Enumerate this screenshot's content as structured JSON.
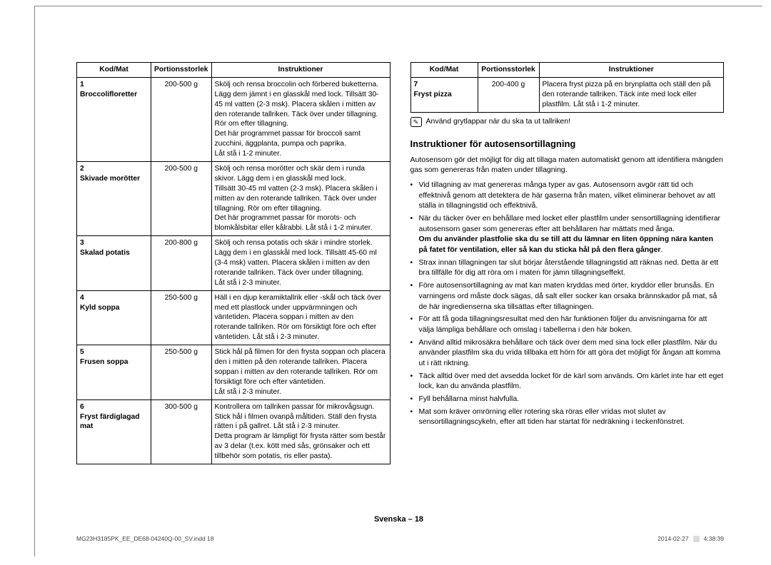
{
  "table_left": {
    "headers": [
      "Kod/Mat",
      "Portionsstorlek",
      "Instruktioner"
    ],
    "col_widths": [
      "104px",
      "78px",
      "auto"
    ],
    "rows": [
      {
        "code": "1",
        "name": "Broccolifloretter",
        "portion": "200-500 g",
        "instr": "Skölj och rensa broccolin och förbered buketterna. Lägg dem jämnt i en glasskål med lock. Tillsätt 30-45 ml vatten (2-3 msk). Placera skålen i mitten av den roterande tallriken. Täck över under tillagning. Rör om efter tillagning.\nDet här programmet passar för broccoli samt zucchini, äggplanta, pumpa och paprika.\nLåt stå i 1-2 minuter."
      },
      {
        "code": "2",
        "name": "Skivade morötter",
        "portion": "200-500 g",
        "instr": "Skölj och rensa morötter och skär dem i runda skivor. Lägg dem i en glasskål med lock.\nTillsätt 30-45 ml vatten (2-3 msk). Placera skålen i mitten av den roterande tallriken. Täck över under tillagning. Rör om efter tillagning.\nDet här programmet passar för morots- och blomkålsbitar eller kålrabbi. Låt stå i 1-2 minuter."
      },
      {
        "code": "3",
        "name": "Skalad potatis",
        "portion": "200-800 g",
        "instr": "Skölj och rensa potatis och skär i mindre storlek. Lägg dem i en glasskål med lock. Tillsätt 45-60 ml (3-4 msk) vatten. Placera skålen i mitten av den roterande tallriken. Täck över under tillagning.\nLåt stå i 2-3 minuter."
      },
      {
        "code": "4",
        "name": "Kyld soppa",
        "portion": "250-500 g",
        "instr": "Häll i en djup keramiktallrik eller -skål och täck över med ett plastlock under uppvärmningen och väntetiden. Placera soppan i mitten av den roterande tallriken. Rör om försiktigt före och efter väntetiden. Låt stå i 2-3 minuter."
      },
      {
        "code": "5",
        "name": "Frusen soppa",
        "portion": "250-500 g",
        "instr": "Stick hål på filmen för den frysta soppan och placera den i mitten på den roterande tallriken. Placera soppan i mitten av den roterande tallriken. Rör om försiktigt före och efter väntetiden.\nLåt stå i 2-3 minuter."
      },
      {
        "code": "6",
        "name": "Fryst färdiglagad mat",
        "portion": "300-500 g",
        "instr": "Kontrollera om tallriken passar för mikrovågsugn. Stick hål i filmen ovanpå måltiden. Ställ den frysta rätten i på gallret. Låt stå i 2-3 minuter.\nDetta program är lämpligt för frysta rätter som består av 3 delar (t.ex. kött med sås, grönsaker och ett tillbehör som potatis, ris eller pasta)."
      }
    ]
  },
  "table_right": {
    "headers": [
      "Kod/Mat",
      "Portionsstorlek",
      "Instruktioner"
    ],
    "rows": [
      {
        "code": "7",
        "name": "Fryst pizza",
        "portion": "200-400 g",
        "instr": "Placera fryst pizza på en brynplatta och ställ den på den roterande tallriken. Täck inte med lock eller plastfilm. Låt stå i 1-2 minuter."
      }
    ]
  },
  "note_text": "Använd grytlappar när du ska ta ut tallriken!",
  "section_heading": "Instruktioner för autosensortillagning",
  "intro_para": "Autosensorn gör det möjligt för dig att tillaga maten automatiskt genom att identifiera mängden gas som genereras från maten under tillagning.",
  "bullets": [
    "Vid tillagning av mat genereras många typer av gas. Autosensorn avgör rätt tid och effektnivå genom att detektera de här gaserna från maten, vilket eliminerar behovet av att ställa in tillagningstid och effektnivå.",
    "När du täcker över en behållare med locket eller plastfilm under sensortillagning identifierar autosensorn gaser som genereras efter att behållaren har mättats med ånga.\n<b>Om du använder plastfolie ska du se till att du lämnar en liten öppning nära kanten på fatet för ventilation, eller så kan du sticka hål på den flera gånger</b>.",
    "Strax innan tillagningen tar slut börjar återstående tillagningstid att räknas ned. Detta är ett bra tillfälle för dig att röra om i maten för jämn tillagningseffekt.",
    "Före autosensortillagning av mat kan maten kryddas med örter, kryddor eller brunsås. En varningens ord måste dock sägas, då salt eller socker kan orsaka brännskador på mat, så de här ingredienserna ska tillsättas efter tillagningen.",
    "För att få goda tillagningsresultat med den här funktionen följer du anvisningarna för att välja lämpliga behållare och omslag i tabellerna i den här boken.",
    "Använd alltid mikrosäkra behållare och täck över dem med sina lock eller plastfilm. När du använder plastfilm ska du vrida tillbaka ett hörn för att göra det möjligt för ångan att komma ut i rätt riktning.",
    "Täck alltid över med det avsedda locket för de kärl som används. Om kärlet inte har ett eget lock, kan du använda plastfilm.",
    "Fyll behållarna minst halvfulla.",
    "Mat som kräver omrörning eller rotering ska röras eller vridas mot slutet av sensortillagningscykeln, efter att tiden har startat för nedräkning i teckenfönstret."
  ],
  "footer_lang": "Svenska – ",
  "footer_page": "18",
  "footline_left": "MG23H3185PK_EE_DE68-04240Q-00_SV.indd   18",
  "footline_date": "2014-02-27",
  "footline_time": "4:38:39",
  "colors": {
    "text": "#000000",
    "border": "#000000",
    "page_border": "#888888",
    "foot_text": "#444444",
    "background": "#ffffff"
  }
}
